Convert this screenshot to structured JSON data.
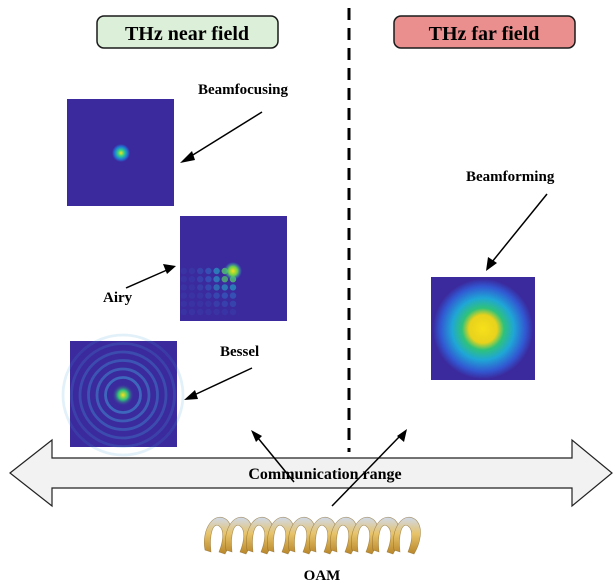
{
  "regions": {
    "near_field": {
      "title": "THz near field",
      "fill": "#dcefd8",
      "stroke": "#1a1a1a"
    },
    "far_field": {
      "title": "THz far field",
      "fill": "#ea8e8e",
      "stroke": "#1a1a1a"
    }
  },
  "labels": {
    "beamfocusing": "Beamfocusing",
    "airy": "Airy",
    "bessel": "Bessel",
    "beamforming": "Beamforming",
    "oam": "OAM"
  },
  "range_arrow": {
    "label": "Communication range",
    "fill": "#f2f2f2"
  },
  "colors": {
    "field_bg": "#3b2a9e",
    "peak_yellow": "#f7e01a",
    "mid_green": "#2fc27a",
    "mid_cyan": "#1fa6d6",
    "arrow": "#000000"
  }
}
